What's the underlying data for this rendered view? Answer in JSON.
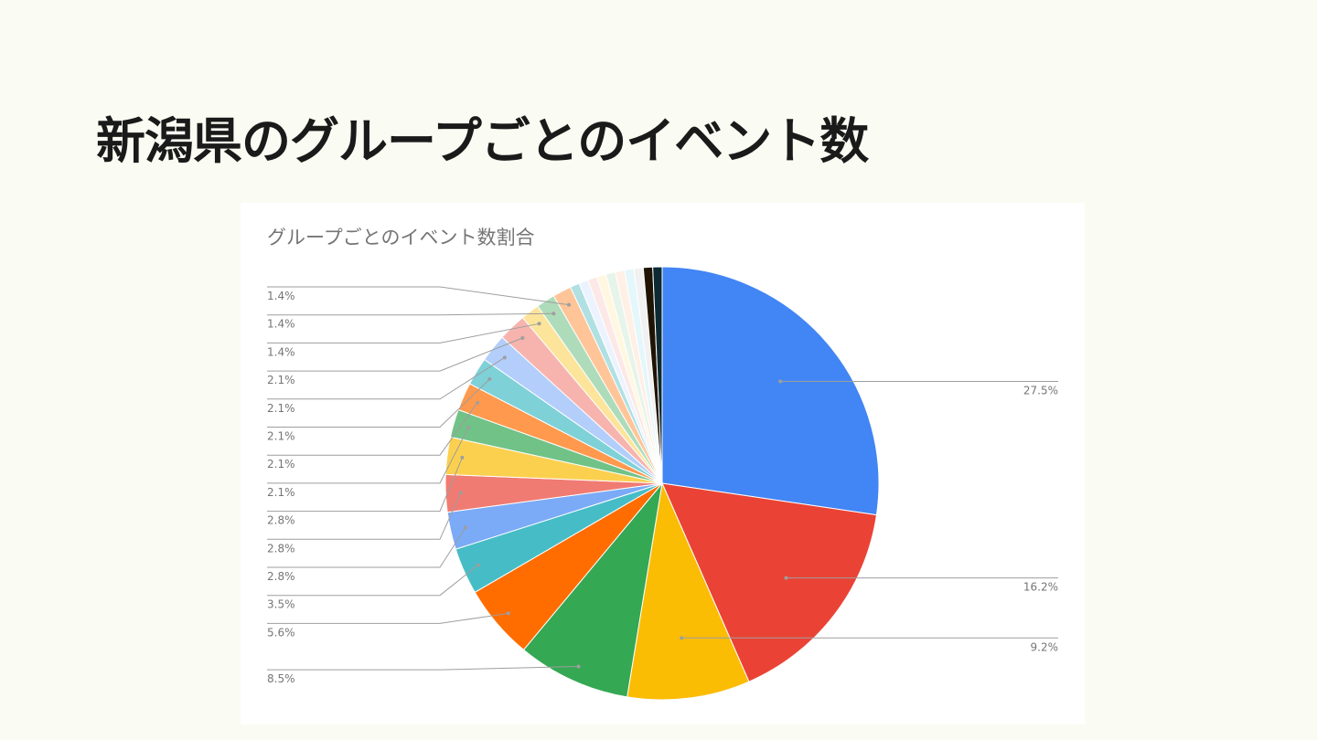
{
  "slide": {
    "title": "新潟県のグループごとのイベント数"
  },
  "chart_data": {
    "type": "pie",
    "title": "グループごとのイベント数割合",
    "legend": "none",
    "label_mode": "percent",
    "slices": [
      {
        "percent": 27.5,
        "label": "27.5%",
        "color": "#4285f4"
      },
      {
        "percent": 16.2,
        "label": "16.2%",
        "color": "#ea4335"
      },
      {
        "percent": 9.2,
        "label": "9.2%",
        "color": "#fbbc04"
      },
      {
        "percent": 8.5,
        "label": "8.5%",
        "color": "#34a853"
      },
      {
        "percent": 5.6,
        "label": "5.6%",
        "color": "#ff6d01"
      },
      {
        "percent": 3.5,
        "label": "3.5%",
        "color": "#46bdc6"
      },
      {
        "percent": 2.8,
        "label": "2.8%",
        "color": "#7baaf7"
      },
      {
        "percent": 2.8,
        "label": "2.8%",
        "color": "#f07b72"
      },
      {
        "percent": 2.8,
        "label": "2.8%",
        "color": "#fcd04f"
      },
      {
        "percent": 2.1,
        "label": "2.1%",
        "color": "#71c287"
      },
      {
        "percent": 2.1,
        "label": "2.1%",
        "color": "#ff994d"
      },
      {
        "percent": 2.1,
        "label": "2.1%",
        "color": "#7ed1d7"
      },
      {
        "percent": 2.1,
        "label": "2.1%",
        "color": "#b3cefb"
      },
      {
        "percent": 2.1,
        "label": "2.1%",
        "color": "#f7b4ae"
      },
      {
        "percent": 1.4,
        "label": "1.4%",
        "color": "#fde49b"
      },
      {
        "percent": 1.4,
        "label": "1.4%",
        "color": "#aedcba"
      },
      {
        "percent": 1.4,
        "label": "1.4%",
        "color": "#ffc599"
      },
      {
        "percent": 0.7,
        "label": "",
        "color": "#b1e0e3"
      },
      {
        "percent": 0.7,
        "label": "",
        "color": "#ecf3fe"
      },
      {
        "percent": 0.7,
        "label": "",
        "color": "#fce8e6"
      },
      {
        "percent": 0.7,
        "label": "",
        "color": "#fff7e0"
      },
      {
        "percent": 0.7,
        "label": "",
        "color": "#e6f4ea"
      },
      {
        "percent": 0.7,
        "label": "",
        "color": "#fff0e6"
      },
      {
        "percent": 0.7,
        "label": "",
        "color": "#e4f7fb"
      },
      {
        "percent": 0.7,
        "label": "",
        "color": "#f1f1f1"
      },
      {
        "percent": 0.7,
        "label": "",
        "color": "#1f1404"
      },
      {
        "percent": 0.7,
        "label": "",
        "color": "#0d2a33"
      }
    ]
  }
}
